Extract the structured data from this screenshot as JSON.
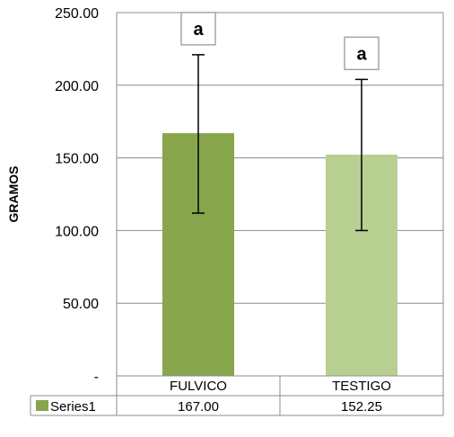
{
  "chart_data": {
    "type": "bar",
    "categories": [
      "FULVICO",
      "TESTIGO"
    ],
    "series": [
      {
        "name": "Series1",
        "values": [
          167.0,
          152.25
        ],
        "value_labels": [
          "167.00",
          "152.25"
        ],
        "error_bars": [
          [
            112,
            221
          ],
          [
            100,
            204
          ]
        ],
        "colors": [
          "#87a64b",
          "#b8cf92"
        ]
      }
    ],
    "ylabel": "GRAMOS",
    "ylim": [
      0,
      250
    ],
    "yticks": [
      0,
      50,
      100,
      150,
      200,
      250
    ],
    "ytick_labels": [
      "-",
      "50.00",
      "100.00",
      "150.00",
      "200.00",
      "250.00"
    ],
    "annotations": [
      "a",
      "a"
    ],
    "grid": true,
    "data_table": true
  }
}
